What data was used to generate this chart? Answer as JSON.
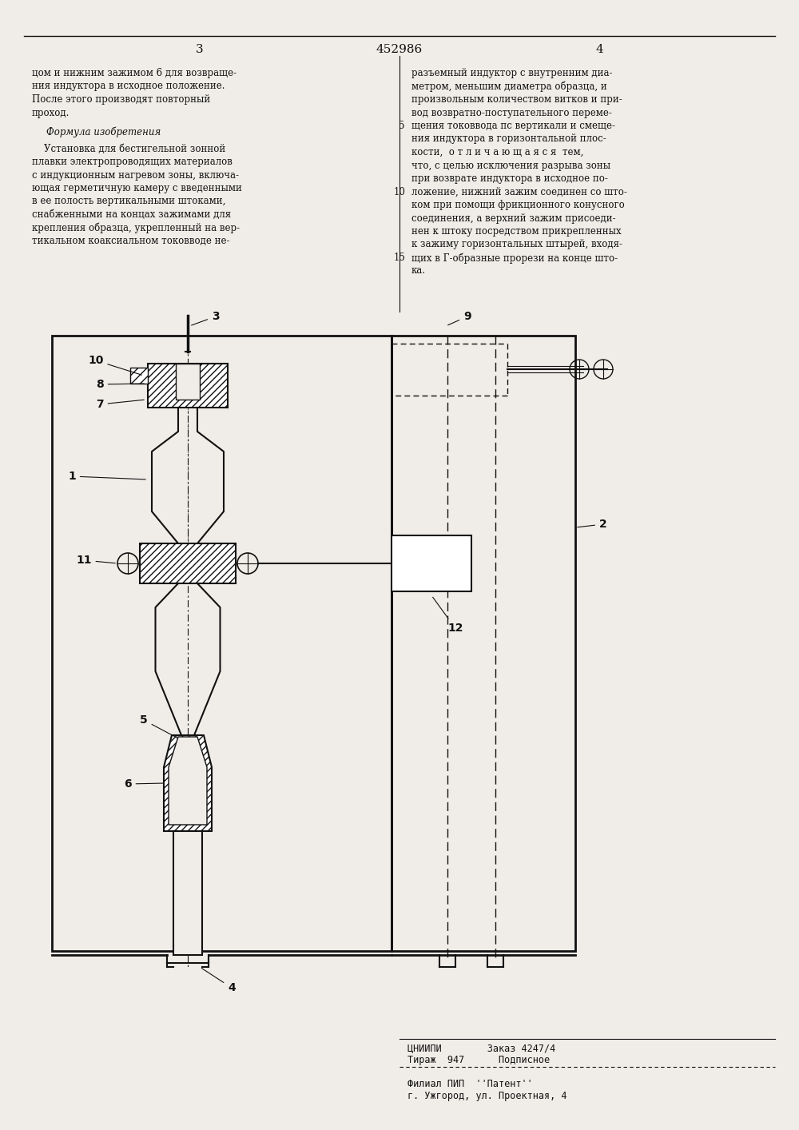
{
  "page_width": 10.0,
  "page_height": 14.14,
  "dpi": 100,
  "bg_color": "#f0ede8",
  "text_color": "#111111",
  "line_color": "#111111",
  "patent_number": "452986",
  "page_left": "3",
  "page_right": "4"
}
